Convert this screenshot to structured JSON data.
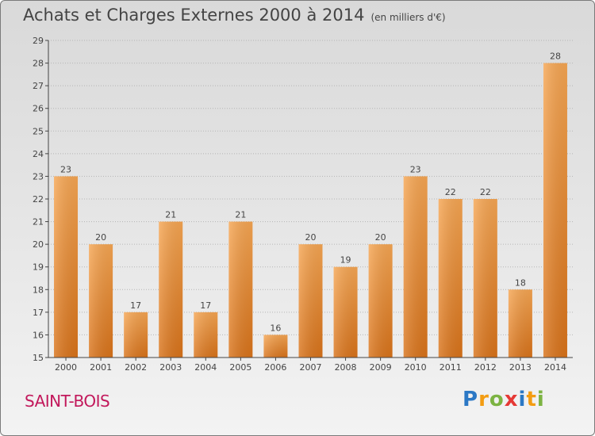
{
  "header": {
    "title": "Achats et Charges Externes 2000 à 2014",
    "unit": "(en milliers d'€)"
  },
  "footer": {
    "city": "SAINT-BOIS",
    "logo_letters": [
      "P",
      "r",
      "o",
      "x",
      "i",
      "t",
      "i"
    ],
    "logo_colors": [
      "#2b78c5",
      "#f39c12",
      "#7cb342",
      "#e53935",
      "#2b78c5",
      "#f39c12",
      "#7cb342"
    ]
  },
  "colors": {
    "bar_light": "#f6a653",
    "bar_dark": "#d9731a",
    "axis": "#444444",
    "grid": "#b5b5b5",
    "city": "#c2185b"
  },
  "chart_data": {
    "type": "bar",
    "title": "Achats et Charges Externes 2000 à 2014",
    "xlabel": "",
    "ylabel": "",
    "categories": [
      "2000",
      "2001",
      "2002",
      "2003",
      "2004",
      "2005",
      "2006",
      "2007",
      "2008",
      "2009",
      "2010",
      "2011",
      "2012",
      "2013",
      "2014"
    ],
    "values": [
      23,
      20,
      17,
      21,
      17,
      21,
      16,
      20,
      19,
      20,
      23,
      22,
      22,
      18,
      28
    ],
    "ylim": [
      15,
      29
    ],
    "yticks": [
      15,
      16,
      17,
      18,
      19,
      20,
      21,
      22,
      23,
      24,
      25,
      26,
      27,
      28,
      29
    ],
    "grid": true
  }
}
